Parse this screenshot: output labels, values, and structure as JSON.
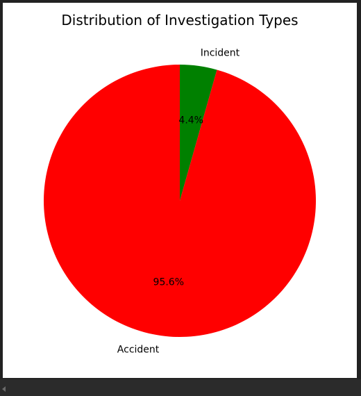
{
  "chart_data": {
    "type": "pie",
    "title": "Distribution of Investigation Types",
    "categories": [
      "Incident",
      "Accident"
    ],
    "values": [
      4.4,
      95.6
    ],
    "labels": [
      "Incident",
      "Accident"
    ],
    "pct_labels": [
      "4.4%",
      "95.6%"
    ],
    "colors": [
      "#008000",
      "#ff0000"
    ],
    "start_angle": 90,
    "direction": "counterclockwise-from-top"
  }
}
